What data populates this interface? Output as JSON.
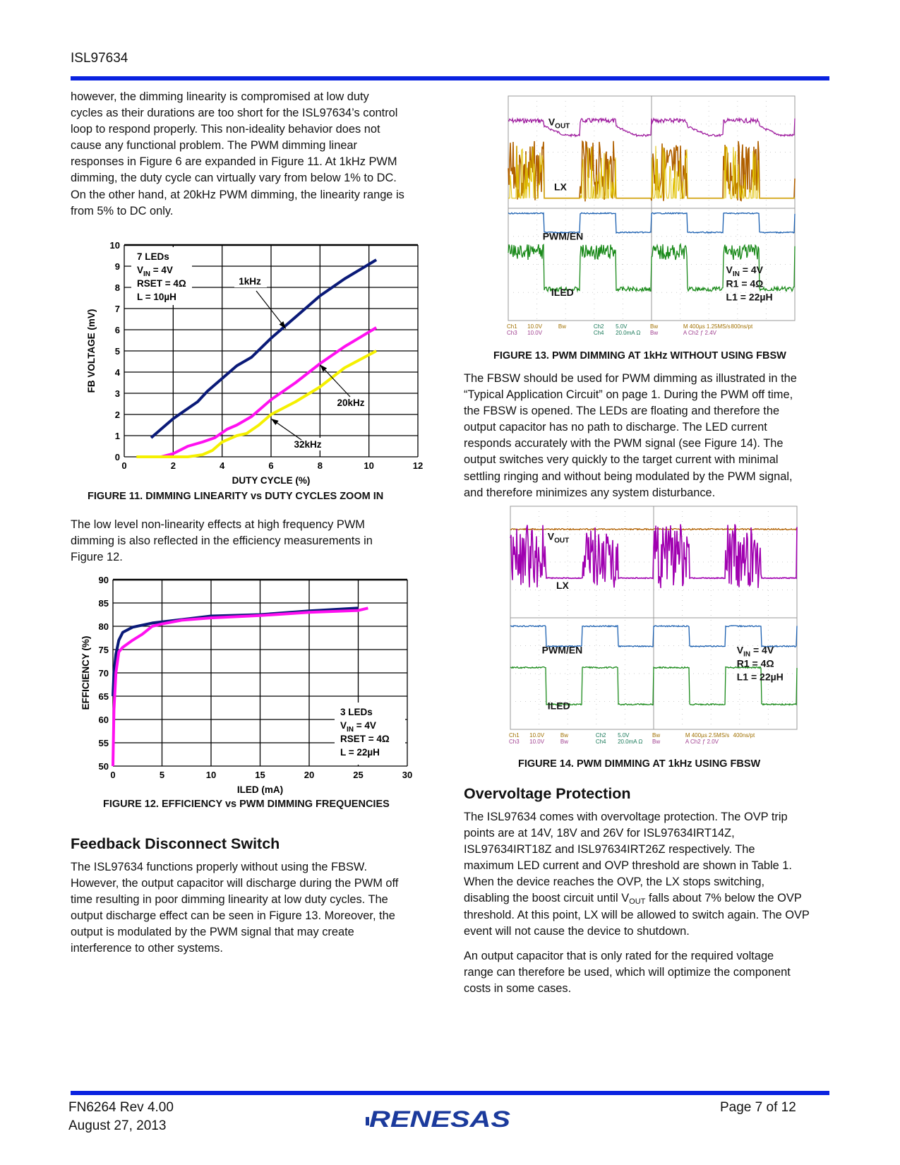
{
  "header": {
    "doc_id": "ISL97634"
  },
  "left": {
    "intro_lines": [
      "however, the dimming linearity is compromised at low duty",
      "cycles as their durations are too short for the ISL97634’s control",
      "loop to respond properly. This non-ideality behavior does not",
      "cause any functional problem. The PWM dimming linear",
      "responses in Figure 6 are expanded in Figure 11. At 1kHz PWM",
      "dimming, the duty cycle can virtually vary from below 1% to DC.",
      "On the other hand, at 20kHz PWM dimming, the linearity range is",
      "from 5% to DC only."
    ],
    "figure11_caption": "FIGURE 11.  DIMMING LINEARITY vs DUTY CYCLES ZOOM IN",
    "mid_lines": [
      "The low level non-linearity effects at high frequency PWM",
      "dimming is also reflected in the efficiency measurements in",
      "Figure 12."
    ],
    "figure12_caption": "FIGURE 12.  EFFICIENCY vs PWM DIMMING FREQUENCIES",
    "heading": "Feedback Disconnect Switch",
    "fbsw_lines": [
      "The ISL97634 functions properly without using the FBSW.",
      "However, the output capacitor will discharge during the PWM off",
      "time resulting in poor dimming linearity at low duty cycles. The",
      "output discharge effect can be seen in Figure 13. Moreover, the",
      "output is modulated by the PWM signal that may create",
      "interference to other systems."
    ]
  },
  "right": {
    "figure13_caption": "FIGURE 13.  PWM DIMMING AT 1kHz WITHOUT USING FBSW",
    "fbsw_use_lines": [
      "The FBSW should be used for PWM dimming as illustrated in the",
      "“Typical Application Circuit” on page 1. During the PWM off time,",
      "the FBSW is opened. The LEDs are floating and therefore the",
      "output capacitor has no path to discharge. The LED current",
      "responds accurately with the PWM signal (see Figure 14). The",
      "output switches very quickly to the target current with minimal",
      "settling ringing and without being modulated by the PWM signal,",
      "and therefore minimizes any system disturbance."
    ],
    "figure14_caption": "FIGURE 14.  PWM DIMMING AT 1kHz USING FBSW",
    "heading": "Overvoltage Protection",
    "ovp_lines": [
      "The ISL97634 comes with overvoltage protection. The OVP trip",
      "points are at 14V, 18V and 26V for ISL97634IRT14Z,",
      "ISL97634IRT18Z and ISL97634IRT26Z respectively. The",
      "maximum LED current and OVP threshold are shown in Table 1.",
      "When the device reaches the OVP, the LX stops switching,",
      [
        "disabling the boost circuit until V",
        "OUT",
        " falls about 7% below the OVP"
      ],
      "threshold. At this point, LX will be allowed to switch again. The OVP",
      "event will not cause the device to shutdown."
    ],
    "ovp2_lines": [
      "An output capacitor that is only rated for the required voltage",
      "range can therefore be used, which will optimize the component",
      "costs in some cases."
    ]
  },
  "scope13": {
    "labels": {
      "vout": "V",
      "vout_sub": "OUT",
      "lx": "LX",
      "pwm": "PWM/EN",
      "iled": "ILED",
      "vin": "V",
      "vin_sub": "IN",
      "vin_val": " = 4V",
      "r1": "R1 = 4Ω",
      "l1": "L1 = 22µH"
    },
    "readout": {
      "r1": [
        "Ch1",
        "10.0V",
        "Bw",
        "Ch2",
        "5.0V",
        "Bw",
        "M 400µs 1.25MS/s",
        "800ns/pt"
      ],
      "r2": [
        "Ch3",
        "10.0V",
        "",
        "Ch4",
        "20.0mA Ω",
        "Bw",
        "A  Ch2  ƒ  2.4V",
        ""
      ]
    },
    "colors": {
      "vout": "#a020a0",
      "lx_a": "#b06000",
      "lx_b": "#e0c000",
      "pwm": "#1a5fb0",
      "iled": "#1a8a1a"
    }
  },
  "scope14": {
    "labels": {
      "vout": "V",
      "vout_sub": "OUT",
      "lx": "LX",
      "pwm": "PWM/EN",
      "iled": "ILED",
      "vin": "V",
      "vin_sub": "IN",
      "vin_val": " = 4V",
      "r1": "R1 = 4Ω",
      "l1": "L1 = 22µH"
    },
    "readout": {
      "r1": [
        "Ch1",
        "10.0V",
        "Bw",
        "Ch2",
        "5.0V",
        "Bw",
        "M 400µs 2.5MS/s",
        "400ns/pt"
      ],
      "r2": [
        "Ch3",
        "10.0V",
        "Bw",
        "Ch4",
        "20.0mA Ω",
        "Bw",
        "A  Ch2  ƒ  2.0V",
        ""
      ]
    },
    "colors": {
      "vout": "#b06000",
      "lx": "#a000b0",
      "pwm": "#1a5fb0",
      "iled": "#1a8a1a"
    }
  },
  "chart_data": [
    {
      "type": "line",
      "title": "",
      "xlabel": "DUTY CYCLE (%)",
      "ylabel": "FB VOLTAGE (mV)",
      "xlim": [
        0,
        12
      ],
      "ylim": [
        0,
        10
      ],
      "xticks": [
        0,
        2,
        4,
        6,
        8,
        10,
        12
      ],
      "yticks": [
        0,
        1,
        2,
        3,
        4,
        5,
        6,
        7,
        8,
        9,
        10
      ],
      "grid": true,
      "annotation": [
        "7 LEDs",
        "VIN = 4V",
        "RSET = 4Ω",
        "L = 10µH"
      ],
      "series": [
        {
          "name": "1kHz",
          "color": "#0a1a78",
          "x": [
            1.1,
            2,
            3,
            3.4,
            4,
            4.6,
            5.2,
            6,
            7,
            8,
            9,
            10.3
          ],
          "y": [
            0.9,
            1.8,
            2.6,
            3.1,
            3.7,
            4.3,
            4.7,
            5.6,
            6.6,
            7.6,
            8.4,
            9.3
          ]
        },
        {
          "name": "20kHz",
          "color": "#ff10f0",
          "x": [
            0.9,
            1.5,
            2,
            2.6,
            3.2,
            3.7,
            4.2,
            4.6,
            5.2,
            6,
            7,
            8,
            9,
            10.3
          ],
          "y": [
            0,
            0,
            0.15,
            0.5,
            0.7,
            0.9,
            1.3,
            1.5,
            1.9,
            2.7,
            3.5,
            4.4,
            5.2,
            6.1
          ]
        },
        {
          "name": "32kHz",
          "color": "#f5f000",
          "x": [
            0.5,
            2.6,
            3.2,
            3.6,
            4,
            4.6,
            5,
            5.5,
            6,
            7,
            8,
            9,
            10.3
          ],
          "y": [
            0,
            0,
            0.1,
            0.3,
            0.7,
            1.0,
            1.1,
            1.5,
            2.0,
            2.6,
            3.3,
            4.2,
            5.0
          ]
        }
      ]
    },
    {
      "type": "line",
      "title": "",
      "xlabel": "ILED (mA)",
      "ylabel": "EFFICIENCY (%)",
      "xlim": [
        0,
        30
      ],
      "ylim": [
        50,
        90
      ],
      "xticks": [
        0,
        5,
        10,
        15,
        20,
        25,
        30
      ],
      "yticks": [
        50,
        55,
        60,
        65,
        70,
        75,
        80,
        85,
        90
      ],
      "grid": true,
      "annotation": [
        "3 LEDs",
        "VIN = 4V",
        "RSET = 4Ω",
        "L = 22µH"
      ],
      "series": [
        {
          "color": "#0a1a78",
          "x": [
            0,
            0.1,
            0.3,
            0.6,
            1,
            2,
            4,
            6,
            10,
            15,
            20,
            25
          ],
          "y": [
            65,
            70,
            74,
            77,
            78.7,
            79.8,
            80.7,
            81.2,
            82.2,
            82.5,
            83.3,
            83.9
          ]
        },
        {
          "color": "#ff10f0",
          "x": [
            0,
            0.1,
            0.3,
            0.6,
            1,
            2,
            3,
            4,
            5,
            7,
            10,
            15,
            20,
            25,
            26
          ],
          "y": [
            50,
            62,
            70,
            74.5,
            75.5,
            77,
            78.3,
            80,
            80.5,
            81.3,
            81.8,
            82.3,
            83,
            83.4,
            83.9
          ]
        }
      ]
    }
  ],
  "footer": {
    "doc_rev": "FN6264  Rev 4.00",
    "date": "August 27, 2013",
    "page": "Page 7 of 12",
    "logo_text": "RENESAS",
    "bar_color": "#0a22e0"
  }
}
